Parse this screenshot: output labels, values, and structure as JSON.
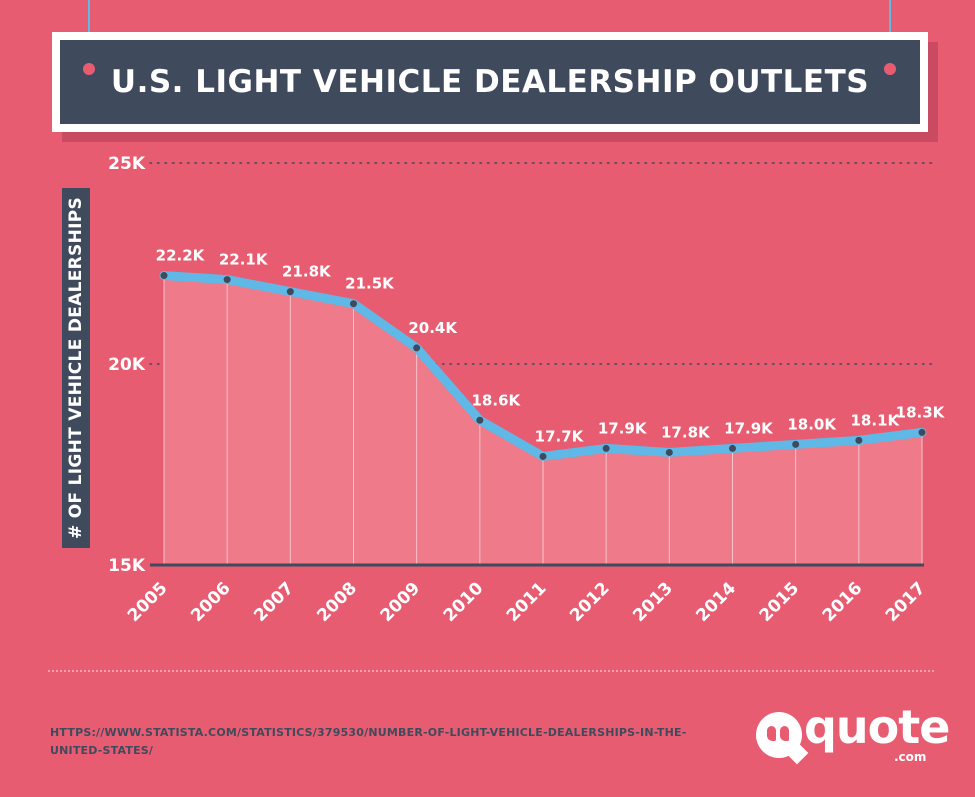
{
  "title": "U.S. LIGHT VEHICLE DEALERSHIP OUTLETS",
  "source": "HTTPS://WWW.STATISTA.COM/STATISTICS/379530/NUMBER-OF-LIGHT-VEHICLE-DEALERSHIPS-IN-THE-UNITED-STATES/",
  "logo": {
    "word": "quote",
    "suffix": ".com",
    "icon": "speech-bubble-quote-icon"
  },
  "colors": {
    "background": "#e85c72",
    "panel": "#3f4a5c",
    "line": "#5fb8e6",
    "area": "#ee7a8a",
    "point": "#3f4a5c"
  },
  "chart_data": {
    "type": "area",
    "title": "U.S. LIGHT VEHICLE DEALERSHIP OUTLETS",
    "xlabel": "",
    "ylabel": "# OF LIGHT VEHICLE DEALERSHIPS",
    "ylim": [
      15000,
      25000
    ],
    "yticks": [
      {
        "value": 25000,
        "label": "25K"
      },
      {
        "value": 20000,
        "label": "20K"
      },
      {
        "value": 15000,
        "label": "15K"
      }
    ],
    "categories": [
      "2005",
      "2006",
      "2007",
      "2008",
      "2009",
      "2010",
      "2011",
      "2012",
      "2013",
      "2014",
      "2015",
      "2016",
      "2017"
    ],
    "values": [
      22200,
      22100,
      21800,
      21500,
      20400,
      18600,
      17700,
      17900,
      17800,
      17900,
      18000,
      18100,
      18300
    ],
    "data_labels": [
      "22.2K",
      "22.1K",
      "21.8K",
      "21.5K",
      "20.4K",
      "18.6K",
      "17.7K",
      "17.9K",
      "17.8K",
      "17.9K",
      "18.0K",
      "18.1K",
      "18.3K"
    ],
    "grid": "dotted horizontal",
    "legend": "none"
  }
}
